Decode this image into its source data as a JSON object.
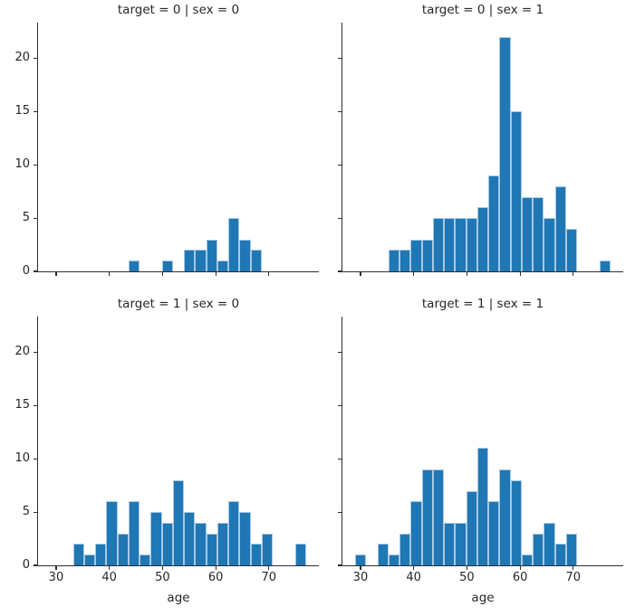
{
  "figure": {
    "background": "#ffffff"
  },
  "chart_data": {
    "type": "bar",
    "subtype": "faceted-histogram",
    "variable": "age",
    "xlabel": "age",
    "ylabel": "",
    "facet_rows_by": "target",
    "facet_cols_by": "sex",
    "bin_start": 29,
    "bin_width": 2.0869565,
    "n_bins": 23,
    "xlim": [
      26.6,
      79.4
    ],
    "ylim": [
      0,
      23.35
    ],
    "xticks": [
      30,
      40,
      50,
      60,
      70
    ],
    "yticks": [
      0,
      5,
      10,
      15,
      20
    ],
    "grid": "off",
    "legend": "none",
    "colors": {
      "bar_fill": "#1f77b4",
      "bar_edge": "#a8c8e4",
      "axis": "#2e2e2e",
      "text": "#262626"
    },
    "facets": [
      {
        "title": "target = 0 | sex = 0",
        "row": 0,
        "col": 0,
        "counts": [
          0,
          0,
          0,
          0,
          0,
          0,
          0,
          1,
          0,
          0,
          1,
          0,
          2,
          2,
          3,
          1,
          5,
          3,
          2,
          0,
          0,
          0,
          0
        ]
      },
      {
        "title": "target = 0 | sex = 1",
        "row": 0,
        "col": 1,
        "counts": [
          0,
          0,
          0,
          2,
          2,
          3,
          3,
          5,
          5,
          5,
          5,
          6,
          9,
          22,
          15,
          7,
          7,
          5,
          8,
          4,
          0,
          0,
          1
        ]
      },
      {
        "title": "target = 1 | sex = 0",
        "row": 1,
        "col": 0,
        "counts": [
          0,
          0,
          2,
          1,
          2,
          6,
          3,
          6,
          1,
          5,
          4,
          8,
          5,
          4,
          3,
          4,
          6,
          5,
          2,
          3,
          0,
          0,
          2
        ]
      },
      {
        "title": "target = 1 | sex = 1",
        "row": 1,
        "col": 1,
        "counts": [
          1,
          0,
          2,
          1,
          3,
          6,
          9,
          9,
          4,
          4,
          7,
          11,
          6,
          9,
          8,
          1,
          3,
          4,
          2,
          3,
          0,
          0,
          0
        ]
      }
    ]
  }
}
